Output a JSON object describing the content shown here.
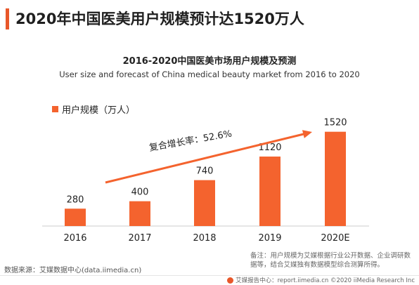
{
  "header": {
    "title": "2020年中国医美用户规模预计达1520万人"
  },
  "chart_data": {
    "type": "bar",
    "title": "2016-2020中国医美市场用户规模及预测",
    "subtitle": "User size and forecast of China medical beauty market from 2016 to 2020",
    "categories": [
      "2016",
      "2017",
      "2018",
      "2019",
      "2020E"
    ],
    "series": [
      {
        "name": "用户规模（万人）",
        "values": [
          280,
          400,
          740,
          1120,
          1520
        ]
      }
    ],
    "data_labels": [
      "280",
      "400",
      "740",
      "1120",
      "1520"
    ],
    "annotation": "复合增长率：52.6%",
    "ylim": [
      0,
      1720
    ],
    "grid": false,
    "legend_position": "top-left",
    "bar_color": "#f4632e"
  },
  "source": "数据来源：艾媒数据中心(data.iimedia.cn)",
  "note": "备注：用户规模为艾媒根据行业公开数据、企业调研数据等，结合艾媒独有数据模型综合测算所得。",
  "footer": {
    "text": "艾媒报告中心：report.iimedia.cn ©2020 iiMedia Research Inc"
  },
  "colors": {
    "accent": "#e8572a",
    "bar": "#f4632e",
    "axis": "#cccccc"
  }
}
